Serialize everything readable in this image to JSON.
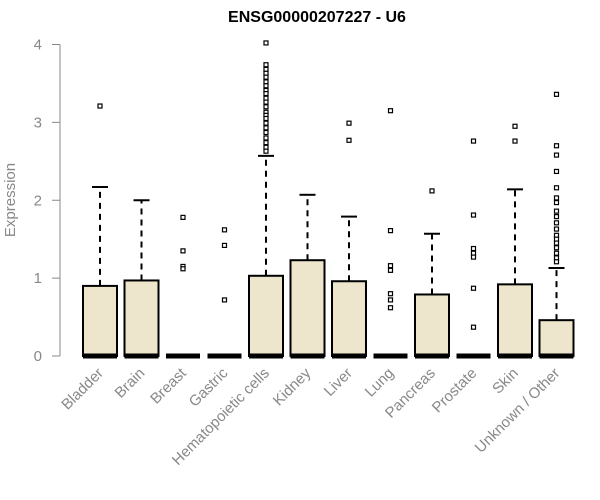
{
  "chart_data": {
    "type": "boxplot",
    "title": "ENSG00000207227 - U6",
    "xlabel": "",
    "ylabel": "Expression",
    "ylim": [
      0,
      4
    ],
    "yticks": [
      "0",
      "1",
      "2",
      "3",
      "4"
    ],
    "grid": false,
    "colors": {
      "box_fill": "#ede6cc",
      "stroke": "#000000",
      "axis": "#888888"
    },
    "categories": [
      {
        "label": "Bladder",
        "min": 0,
        "q1": 0,
        "median": 0,
        "q3": 0.9,
        "whisker_high": 2.17,
        "outliers": [
          3.21
        ]
      },
      {
        "label": "Brain",
        "min": 0,
        "q1": 0,
        "median": 0,
        "q3": 0.97,
        "whisker_high": 2.0,
        "outliers": []
      },
      {
        "label": "Breast",
        "min": 0,
        "q1": 0,
        "median": 0,
        "q3": 0,
        "whisker_high": 0,
        "outliers": [
          1.78,
          1.35,
          1.15,
          1.12
        ]
      },
      {
        "label": "Gastric",
        "min": 0,
        "q1": 0,
        "median": 0,
        "q3": 0,
        "whisker_high": 0,
        "outliers": [
          1.62,
          1.42,
          0.72
        ]
      },
      {
        "label": "Hematopoietic cells",
        "min": 0,
        "q1": 0,
        "median": 0,
        "q3": 1.03,
        "whisker_high": 2.57,
        "outliers": [
          4.02,
          3.74,
          3.68,
          3.63,
          3.58,
          3.52,
          3.47,
          3.41,
          3.37,
          3.31,
          3.26,
          3.2,
          3.13,
          3.09,
          3.05,
          2.99,
          2.93,
          2.87,
          2.8,
          2.74,
          2.68,
          2.63
        ]
      },
      {
        "label": "Kidney",
        "min": 0,
        "q1": 0,
        "median": 0,
        "q3": 1.23,
        "whisker_high": 2.07,
        "outliers": []
      },
      {
        "label": "Liver",
        "min": 0,
        "q1": 0,
        "median": 0,
        "q3": 0.96,
        "whisker_high": 1.79,
        "outliers": [
          2.99,
          2.77
        ]
      },
      {
        "label": "Lung",
        "min": 0,
        "q1": 0,
        "median": 0,
        "q3": 0,
        "whisker_high": 0,
        "outliers": [
          3.15,
          1.61,
          1.16,
          1.1,
          0.8,
          0.72,
          0.62
        ]
      },
      {
        "label": "Pancreas",
        "min": 0,
        "q1": 0,
        "median": 0,
        "q3": 0.79,
        "whisker_high": 1.57,
        "outliers": [
          2.12
        ]
      },
      {
        "label": "Prostate",
        "min": 0,
        "q1": 0,
        "median": 0,
        "q3": 0,
        "whisker_high": 0,
        "outliers": [
          2.76,
          1.81,
          1.38,
          1.32,
          1.27,
          0.87,
          0.37
        ]
      },
      {
        "label": "Skin",
        "min": 0,
        "q1": 0,
        "median": 0,
        "q3": 0.92,
        "whisker_high": 2.14,
        "outliers": [
          2.95,
          2.76
        ]
      },
      {
        "label": "Unknown / Other",
        "min": 0,
        "q1": 0,
        "median": 0,
        "q3": 0.46,
        "whisker_high": 1.13,
        "outliers": [
          3.36,
          2.7,
          2.58,
          2.37,
          2.16,
          2.03,
          1.97,
          1.86,
          1.79,
          1.71,
          1.63,
          1.55,
          1.5,
          1.45,
          1.39,
          1.32,
          1.26,
          1.21
        ]
      }
    ]
  }
}
